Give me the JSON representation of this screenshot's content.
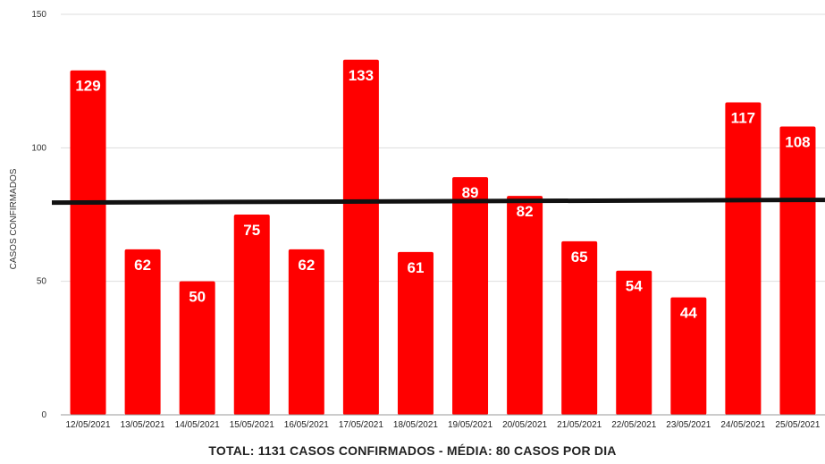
{
  "chart_data": {
    "type": "bar",
    "title": "",
    "xlabel": "",
    "ylabel": "CASOS CONFIRMADOS",
    "ylim": [
      0,
      150
    ],
    "yticks": [
      0,
      50,
      100,
      150
    ],
    "categories": [
      "12/05/2021",
      "13/05/2021",
      "14/05/2021",
      "15/05/2021",
      "16/05/2021",
      "17/05/2021",
      "18/05/2021",
      "19/05/2021",
      "20/05/2021",
      "21/05/2021",
      "22/05/2021",
      "23/05/2021",
      "24/05/2021",
      "25/05/2021"
    ],
    "values": [
      129,
      62,
      50,
      75,
      62,
      133,
      61,
      89,
      82,
      65,
      54,
      44,
      117,
      108
    ],
    "average_line": 80,
    "grid": true,
    "bar_color": "#ff0000",
    "average_line_color": "#111111",
    "data_label_color": "#ffffff",
    "caption": "TOTAL: 1131 CASOS CONFIRMADOS - MÉDIA: 80 CASOS POR DIA"
  }
}
